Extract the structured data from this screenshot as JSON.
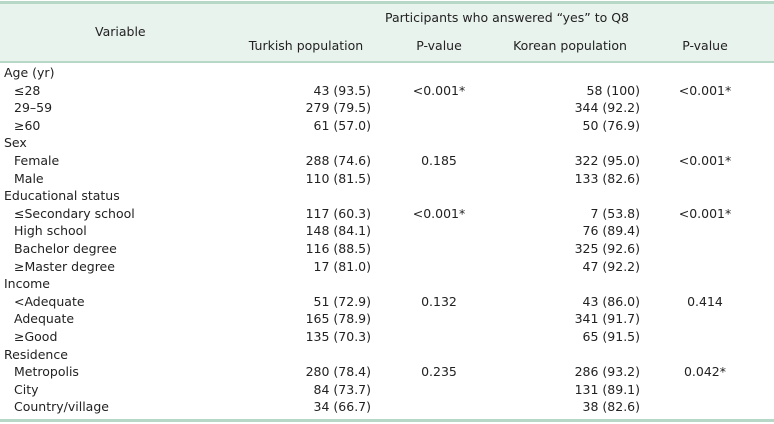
{
  "header": {
    "variable": "Variable",
    "span_title": "Participants who answered “yes” to Q8",
    "col_turkish": "Turkish population",
    "col_p1": "P-value",
    "col_korean": "Korean population",
    "col_p2": "P-value"
  },
  "rows": [
    {
      "label": "Age (yr)",
      "turkish": "",
      "p1": "",
      "korean": "",
      "p2": ""
    },
    {
      "label": "≤28",
      "turkish": "43 (93.5)",
      "p1": "<0.001*",
      "korean": "58 (100)",
      "p2": "<0.001*"
    },
    {
      "label": "29–59",
      "turkish": "279 (79.5)",
      "p1": "",
      "korean": "344 (92.2)",
      "p2": ""
    },
    {
      "label": "≥60",
      "turkish": "61 (57.0)",
      "p1": "",
      "korean": "50 (76.9)",
      "p2": ""
    },
    {
      "label": "Sex",
      "turkish": "",
      "p1": "",
      "korean": "",
      "p2": ""
    },
    {
      "label": "Female",
      "turkish": "288 (74.6)",
      "p1": "0.185",
      "korean": "322 (95.0)",
      "p2": "<0.001*"
    },
    {
      "label": "Male",
      "turkish": "110 (81.5)",
      "p1": "",
      "korean": "133 (82.6)",
      "p2": ""
    },
    {
      "label": "Educational status",
      "turkish": "",
      "p1": "",
      "korean": "",
      "p2": ""
    },
    {
      "label": "≤Secondary school",
      "turkish": "117 (60.3)",
      "p1": "<0.001*",
      "korean": "7 (53.8)",
      "p2": "<0.001*"
    },
    {
      "label": "High school",
      "turkish": "148 (84.1)",
      "p1": "",
      "korean": "76 (89.4)",
      "p2": ""
    },
    {
      "label": "Bachelor degree",
      "turkish": "116 (88.5)",
      "p1": "",
      "korean": "325 (92.6)",
      "p2": ""
    },
    {
      "label": "≥Master degree",
      "turkish": "17 (81.0)",
      "p1": "",
      "korean": "47 (92.2)",
      "p2": ""
    },
    {
      "label": "Income",
      "turkish": "",
      "p1": "",
      "korean": "",
      "p2": ""
    },
    {
      "label": "<Adequate",
      "turkish": "51 (72.9)",
      "p1": "0.132",
      "korean": "43 (86.0)",
      "p2": "0.414"
    },
    {
      "label": "Adequate",
      "turkish": "165 (78.9)",
      "p1": "",
      "korean": "341 (91.7)",
      "p2": ""
    },
    {
      "label": "≥Good",
      "turkish": "135 (70.3)",
      "p1": "",
      "korean": "65 (91.5)",
      "p2": ""
    },
    {
      "label": "Residence",
      "turkish": "",
      "p1": "",
      "korean": "",
      "p2": ""
    },
    {
      "label": "Metropolis",
      "turkish": "280 (78.4)",
      "p1": "0.235",
      "korean": "286 (93.2)",
      "p2": "0.042*"
    },
    {
      "label": "City",
      "turkish": "84 (73.7)",
      "p1": "",
      "korean": "131 (89.1)",
      "p2": ""
    },
    {
      "label": "Country/village",
      "turkish": "34 (66.7)",
      "p1": "",
      "korean": "38 (82.6)",
      "p2": ""
    }
  ]
}
